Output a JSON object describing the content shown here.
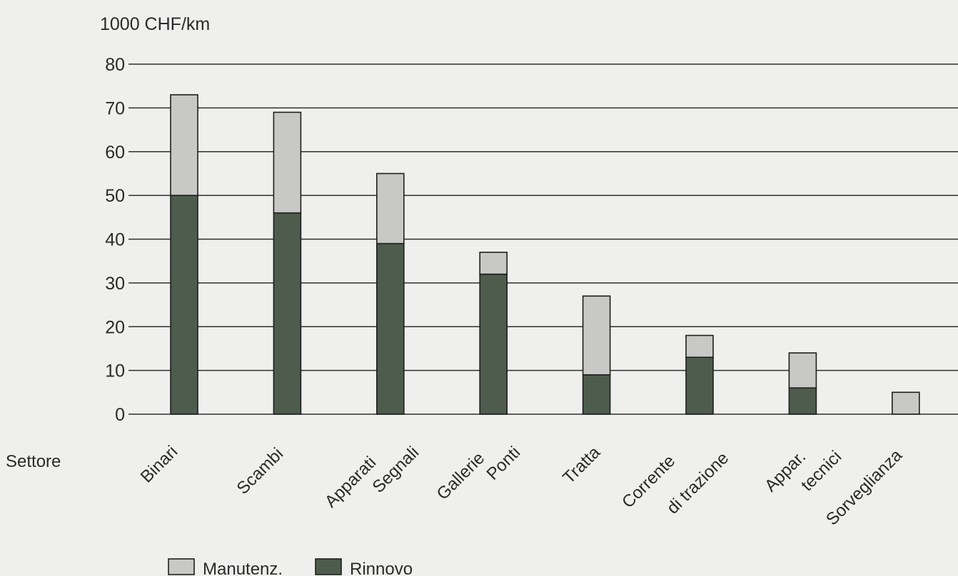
{
  "chart_data": {
    "type": "bar",
    "stacked": true,
    "unit_label": "1000 CHF/km",
    "xlabel": "Settore",
    "categories": [
      [
        "Binari"
      ],
      [
        "Scambi"
      ],
      [
        "Apparati",
        "Segnali"
      ],
      [
        "Gallerie",
        "Ponti"
      ],
      [
        "Tratta"
      ],
      [
        "Corrente",
        "di trazione"
      ],
      [
        "Appar.",
        "tecnici"
      ],
      [
        "Sorveglianza"
      ]
    ],
    "series": [
      {
        "name": "Rinnovo",
        "color": "#4d5c4d",
        "values": [
          50,
          46,
          39,
          32,
          9,
          13,
          6,
          0
        ]
      },
      {
        "name": "Manutenz.",
        "color": "#c8c8c6",
        "values": [
          23,
          23,
          16,
          5,
          18,
          5,
          8,
          5
        ]
      }
    ],
    "ylim": [
      0,
      80
    ],
    "yticks": [
      0,
      10,
      20,
      30,
      40,
      50,
      60,
      70,
      80
    ],
    "grid": true,
    "legend_position": "bottom-left",
    "legend_order": [
      "Manutenz.",
      "Rinnovo"
    ]
  }
}
